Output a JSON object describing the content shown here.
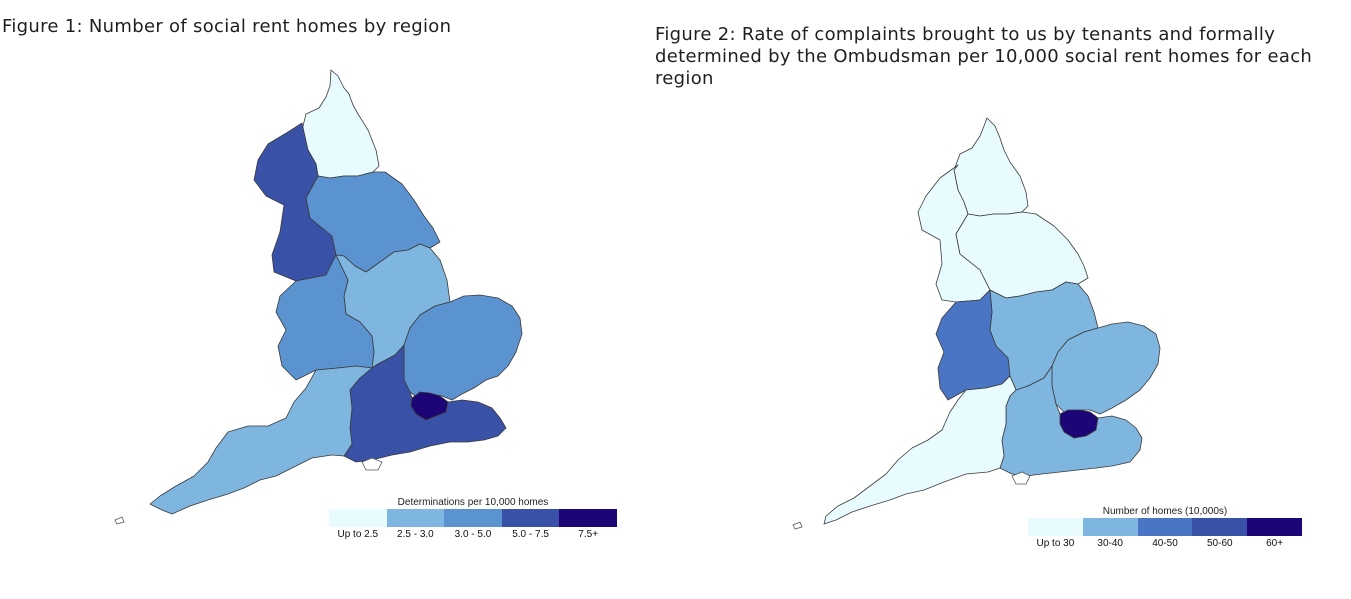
{
  "figure1": {
    "title": "Figure 1: Number of social rent homes by region",
    "legend": {
      "title": "Determinations per 10,000 homes",
      "items": [
        {
          "label": "Up to 2.5",
          "color": "#e8fcff"
        },
        {
          "label": "2.5 - 3.0",
          "color": "#7fb6e0"
        },
        {
          "label": "3.0 - 5.0",
          "color": "#5b93d0"
        },
        {
          "label": "5.0 - 7.5",
          "color": "#3a51a8"
        },
        {
          "label": "7.5+",
          "color": "#1b0577"
        }
      ]
    },
    "regions": [
      {
        "name": "North East",
        "color": "#e8fcff"
      },
      {
        "name": "North West",
        "color": "#3a51a8"
      },
      {
        "name": "Yorkshire and the Humber",
        "color": "#5b93d0"
      },
      {
        "name": "East Midlands",
        "color": "#7fb6e0"
      },
      {
        "name": "West Midlands",
        "color": "#5b93d0"
      },
      {
        "name": "East of England",
        "color": "#5b93d0"
      },
      {
        "name": "London",
        "color": "#1b0577"
      },
      {
        "name": "South East",
        "color": "#3a51a8"
      },
      {
        "name": "South West",
        "color": "#7fb6e0"
      }
    ]
  },
  "figure2": {
    "title": "Figure 2: Rate of complaints brought to us by tenants and formally determined by the Ombudsman per 10,000 social rent homes for each region",
    "legend": {
      "title": "Number of homes (10,000s)",
      "items": [
        {
          "label": "Up to 30",
          "color": "#e8fcff"
        },
        {
          "label": "30-40",
          "color": "#7fb6e0"
        },
        {
          "label": "40-50",
          "color": "#4a74c4"
        },
        {
          "label": "50-60",
          "color": "#3a51a8"
        },
        {
          "label": "60+",
          "color": "#1b0577"
        }
      ]
    },
    "regions": [
      {
        "name": "North East",
        "color": "#e8fcff"
      },
      {
        "name": "North West",
        "color": "#e8fcff"
      },
      {
        "name": "Yorkshire and the Humber",
        "color": "#e8fcff"
      },
      {
        "name": "East Midlands",
        "color": "#7fb6e0"
      },
      {
        "name": "West Midlands",
        "color": "#4a74c4"
      },
      {
        "name": "East of England",
        "color": "#7fb6e0"
      },
      {
        "name": "London",
        "color": "#1b0577"
      },
      {
        "name": "South East",
        "color": "#7fb6e0"
      },
      {
        "name": "South West",
        "color": "#e8fcff"
      }
    ]
  }
}
